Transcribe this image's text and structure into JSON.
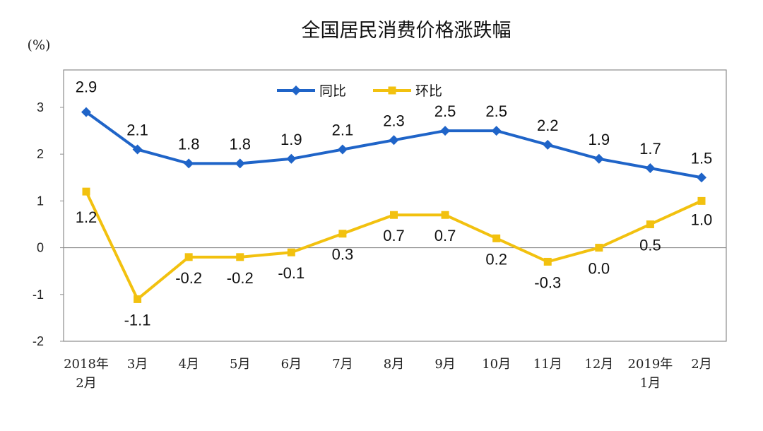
{
  "chart_data": {
    "type": "line",
    "title": "全国居民消费价格涨跌幅",
    "ylabel": "(%)",
    "xlabel": "",
    "ylim": [
      -2,
      3.8
    ],
    "yticks": [
      3,
      2,
      1,
      0,
      -1,
      -2
    ],
    "categories": [
      [
        "2018年",
        "2月"
      ],
      [
        "3月"
      ],
      [
        "4月"
      ],
      [
        "5月"
      ],
      [
        "6月"
      ],
      [
        "7月"
      ],
      [
        "8月"
      ],
      [
        "9月"
      ],
      [
        "10月"
      ],
      [
        "11月"
      ],
      [
        "12月"
      ],
      [
        "2019年",
        "1月"
      ],
      [
        "2月"
      ]
    ],
    "legend": "top-center",
    "grid": false,
    "series": [
      {
        "name": "同比",
        "color": "#1F64C8",
        "marker": "diamond",
        "values": [
          2.9,
          2.1,
          1.8,
          1.8,
          1.9,
          2.1,
          2.3,
          2.5,
          2.5,
          2.2,
          1.9,
          1.7,
          1.5
        ],
        "labels": [
          "2.9",
          "2.1",
          "1.8",
          "1.8",
          "1.9",
          "2.1",
          "2.3",
          "2.5",
          "2.5",
          "2.2",
          "1.9",
          "1.7",
          "1.5"
        ]
      },
      {
        "name": "环比",
        "color": "#F2C10F",
        "marker": "square",
        "values": [
          1.2,
          -1.1,
          -0.2,
          -0.2,
          -0.1,
          0.3,
          0.7,
          0.7,
          0.2,
          -0.3,
          0.0,
          0.5,
          1.0
        ],
        "labels": [
          "1.2",
          "-1.1",
          "-0.2",
          "-0.2",
          "-0.1",
          "0.3",
          "0.7",
          "0.7",
          "0.2",
          "-0.3",
          "0.0",
          "0.5",
          "1.0"
        ]
      }
    ]
  }
}
